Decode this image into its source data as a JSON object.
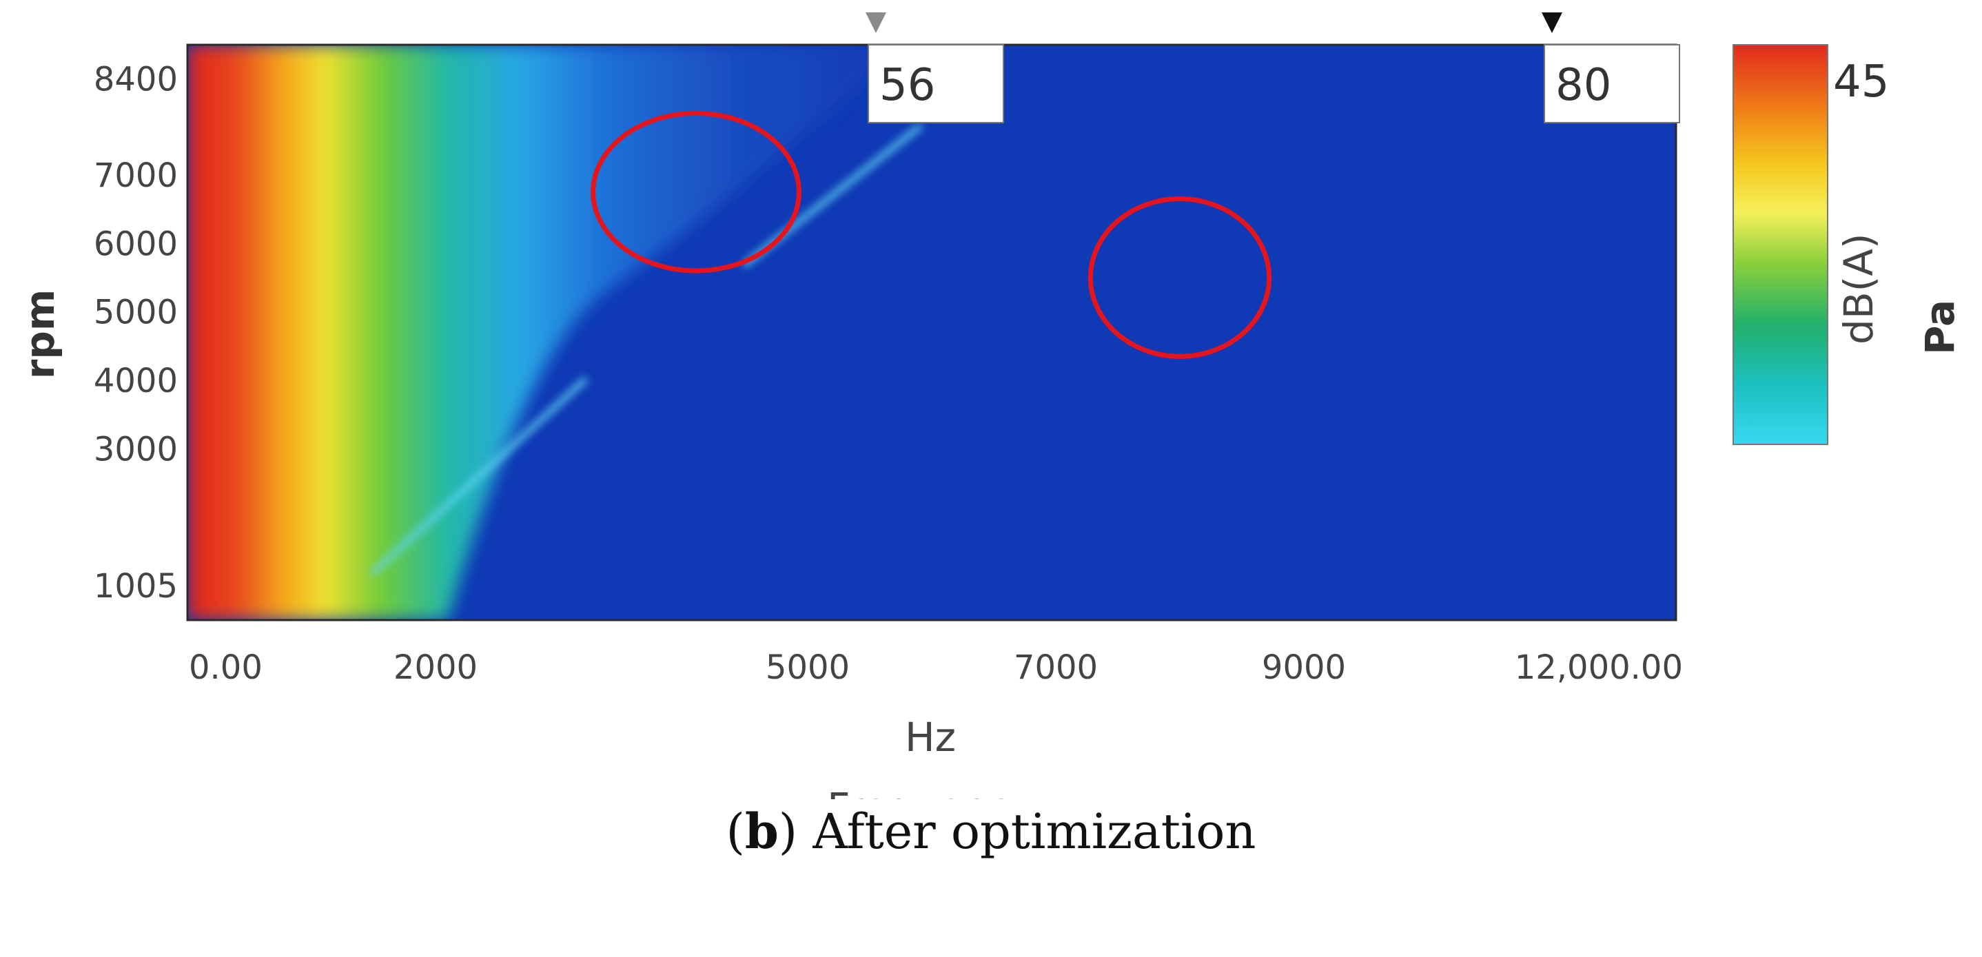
{
  "caption": {
    "prefix": "(",
    "letter": "b",
    "suffix": ") After optimization"
  },
  "chart_data": {
    "type": "heatmap",
    "title": "",
    "xlabel_unit": "Hz",
    "xlabel": "Frequency",
    "ylabel": "rpm",
    "x_ticks": [
      {
        "label": "0.00",
        "value": 0
      },
      {
        "label": "2000",
        "value": 2000
      },
      {
        "label": "5000",
        "value": 5000
      },
      {
        "label": "7000",
        "value": 7000
      },
      {
        "label": "9000",
        "value": 9000
      },
      {
        "label": "12,000.00",
        "value": 12000
      }
    ],
    "y_ticks": [
      {
        "label": "8400",
        "value": 8400
      },
      {
        "label": "7000",
        "value": 7000
      },
      {
        "label": "6000",
        "value": 6000
      },
      {
        "label": "5000",
        "value": 5000
      },
      {
        "label": "4000",
        "value": 4000
      },
      {
        "label": "3000",
        "value": 3000
      },
      {
        "label": "1005",
        "value": 1005
      }
    ],
    "xlim": [
      0,
      12000
    ],
    "ylim": [
      500,
      8900
    ],
    "colorbar": {
      "max_label": "45",
      "unit_label": "dB(A)",
      "quantity_label": "Pa",
      "max": 45,
      "colormap": "jet"
    },
    "markers": [
      {
        "label": "56",
        "x": 5550,
        "color": "#8a8a8a"
      },
      {
        "label": "80",
        "x": 11000,
        "color": "#111111"
      }
    ],
    "annotations": [
      {
        "type": "circle",
        "cx": 4100,
        "cy": 6750,
        "rx": 830,
        "ry": 1150,
        "color": "#e8141c"
      },
      {
        "type": "circle",
        "cx": 8000,
        "cy": 5500,
        "rx": 720,
        "ry": 1150,
        "color": "#e8141c"
      }
    ],
    "order_lines": [
      {
        "from": [
          1500,
          1200
        ],
        "to": [
          3200,
          4000
        ]
      },
      {
        "from": [
          4500,
          5700
        ],
        "to": [
          5900,
          7700
        ]
      }
    ]
  }
}
